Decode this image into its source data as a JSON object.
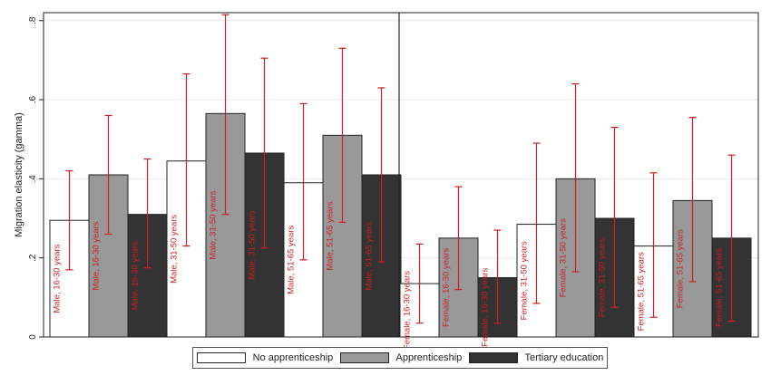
{
  "chart_data": {
    "type": "bar",
    "ylabel": "Migration elasticity (gamma)",
    "ylim": [
      0,
      0.82
    ],
    "yticks": [
      {
        "value": 0,
        "label": "0"
      },
      {
        "value": 0.2,
        "label": ".2"
      },
      {
        "value": 0.4,
        "label": ".4"
      },
      {
        "value": 0.6,
        "label": ".6"
      },
      {
        "value": 0.8,
        "label": ".8"
      }
    ],
    "grid": true,
    "legend_position": "bottom",
    "series": [
      {
        "name": "No apprenticeship",
        "color": "#ffffff"
      },
      {
        "name": "Apprenticeship",
        "color": "#999999"
      },
      {
        "name": "Tertiary education",
        "color": "#333333"
      }
    ],
    "error_color": "#cc1f1f",
    "panels": [
      {
        "groups": [
          {
            "label": "Male, 16-30 years",
            "bars": [
              {
                "series": 0,
                "value": 0.295,
                "ci": [
                  0.17,
                  0.42
                ]
              },
              {
                "series": 1,
                "value": 0.41,
                "ci": [
                  0.26,
                  0.56
                ]
              },
              {
                "series": 2,
                "value": 0.31,
                "ci": [
                  0.175,
                  0.45
                ]
              }
            ]
          },
          {
            "label": "Male, 31-50 years",
            "bars": [
              {
                "series": 0,
                "value": 0.445,
                "ci": [
                  0.23,
                  0.665
                ]
              },
              {
                "series": 1,
                "value": 0.565,
                "ci": [
                  0.31,
                  0.815
                ]
              },
              {
                "series": 2,
                "value": 0.465,
                "ci": [
                  0.225,
                  0.705
                ]
              }
            ]
          },
          {
            "label": "Male, 51-65 years",
            "bars": [
              {
                "series": 0,
                "value": 0.39,
                "ci": [
                  0.195,
                  0.59
                ]
              },
              {
                "series": 1,
                "value": 0.51,
                "ci": [
                  0.29,
                  0.73
                ]
              },
              {
                "series": 2,
                "value": 0.41,
                "ci": [
                  0.19,
                  0.63
                ]
              }
            ]
          }
        ]
      },
      {
        "groups": [
          {
            "label": "Female, 16-30 years",
            "bars": [
              {
                "series": 0,
                "value": 0.135,
                "ci": [
                  0.035,
                  0.235
                ]
              },
              {
                "series": 1,
                "value": 0.25,
                "ci": [
                  0.12,
                  0.38
                ]
              },
              {
                "series": 2,
                "value": 0.15,
                "ci": [
                  0.035,
                  0.27
                ]
              }
            ]
          },
          {
            "label": "Female, 31-50 years",
            "bars": [
              {
                "series": 0,
                "value": 0.285,
                "ci": [
                  0.085,
                  0.49
                ]
              },
              {
                "series": 1,
                "value": 0.4,
                "ci": [
                  0.165,
                  0.64
                ]
              },
              {
                "series": 2,
                "value": 0.3,
                "ci": [
                  0.075,
                  0.53
                ]
              }
            ]
          },
          {
            "label": "Female, 51-65 years",
            "bars": [
              {
                "series": 0,
                "value": 0.23,
                "ci": [
                  0.05,
                  0.415
                ]
              },
              {
                "series": 1,
                "value": 0.345,
                "ci": [
                  0.14,
                  0.555
                ]
              },
              {
                "series": 2,
                "value": 0.25,
                "ci": [
                  0.04,
                  0.46
                ]
              }
            ]
          }
        ]
      }
    ]
  }
}
